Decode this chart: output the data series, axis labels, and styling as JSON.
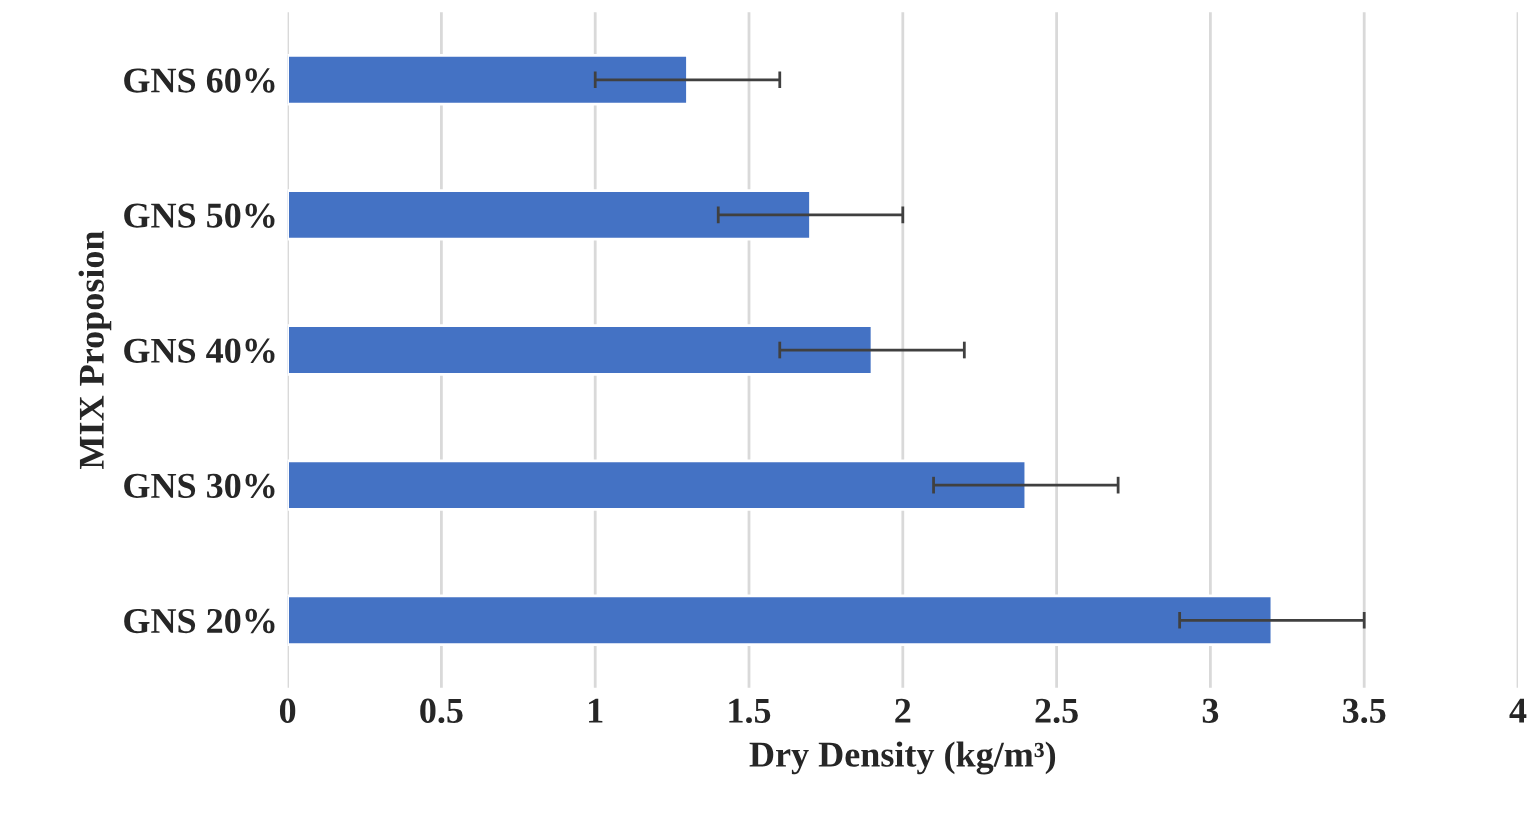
{
  "chart_data": {
    "type": "bar",
    "orientation": "horizontal",
    "xlabel": "Dry Density (kg/m³)",
    "ylabel": "MIX Proposion",
    "categories": [
      "GNS 60%",
      "GNS 50%",
      "GNS 40%",
      "GNS 30%",
      "GNS 20%"
    ],
    "values": [
      1.3,
      1.7,
      1.9,
      2.4,
      3.2
    ],
    "errors": [
      0.3,
      0.3,
      0.3,
      0.3,
      0.3
    ],
    "color": "#4472c4",
    "xlim": [
      0,
      4
    ],
    "xticks": [
      0,
      0.5,
      1,
      1.5,
      2,
      2.5,
      3,
      3.5,
      4
    ],
    "grid": "x"
  }
}
